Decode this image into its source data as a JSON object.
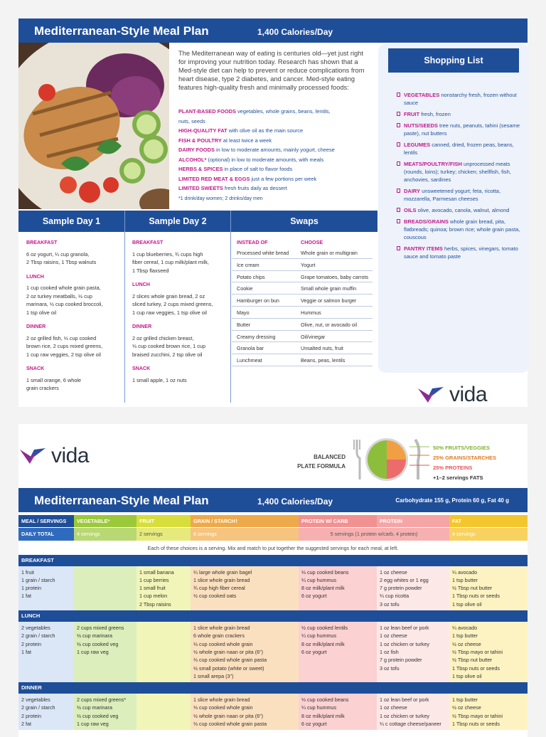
{
  "page1": {
    "title": "Mediterranean-Style Meal Plan",
    "calories": "1,400 Calories/Day",
    "intro": "The Mediterranean way of eating is centuries old—yet just right for improving your nutrition today. Research has shown that a Med-style diet can help to prevent or reduce complications from heart disease, type 2 diabetes, and cancer. Med-style eating features high-quality fresh and minimally processed foods:",
    "foods": [
      {
        "k": "PLANT-BASED FOODS",
        "v": "vegetables, whole grains, beans, lentils,"
      },
      {
        "k": "",
        "v": "nuts, seeds"
      },
      {
        "k": "HIGH-QUALITY FAT",
        "v": "with olive oil as the main source"
      },
      {
        "k": "FISH & POULTRY",
        "v": "at least twice a week"
      },
      {
        "k": "DAIRY FOODS",
        "v": "in low to moderate amounts, mainly yogurt, cheese"
      },
      {
        "k": "ALCOHOL*",
        "v": "(optional) in low to moderate amounts, with meals"
      },
      {
        "k": "HERBS & SPICES",
        "v": "in place of salt to flavor foods"
      },
      {
        "k": "LIMITED RED MEAT & EGGS",
        "v": "just a few portions per week"
      },
      {
        "k": "LIMITED SWEETS",
        "v": "fresh fruits daily as dessert"
      }
    ],
    "footnote": "*1 drink/day women; 2 drinks/day men",
    "sample_day_1": {
      "heading": "Sample Day 1",
      "meals": [
        {
          "h": "BREAKFAST",
          "lines": [
            "6 oz yogurt, ¼ cup granola,",
            "2 Tbsp raisins, 1 Tbsp walnuts"
          ]
        },
        {
          "h": "LUNCH",
          "lines": [
            "1 cup cooked whole grain pasta,",
            "2 oz turkey meatballs, ½ cup",
            "marinara, ½ cup cooked broccoli,",
            "1 tsp olive oil"
          ]
        },
        {
          "h": "DINNER",
          "lines": [
            "2 oz grilled fish, ⅓ cup cooked",
            "brown rice, 2 cups mixed greens,",
            "1 cup raw veggies, 2 tsp olive oil"
          ]
        },
        {
          "h": "SNACK",
          "lines": [
            "1 small orange, 6 whole",
            "grain crackers"
          ]
        }
      ]
    },
    "sample_day_2": {
      "heading": "Sample Day 2",
      "meals": [
        {
          "h": "BREAKFAST",
          "lines": [
            "1 cup blueberries, ¾ cups high",
            "fiber cereal, 1 cup milk/plant milk,",
            "1 Tbsp flaxseed"
          ]
        },
        {
          "h": "LUNCH",
          "lines": [
            "2 slices whole grain bread, 2 oz",
            "sliced turkey, 2 cups mixed greens,",
            "1 cup raw veggies, 1 tsp olive oil"
          ]
        },
        {
          "h": "DINNER",
          "lines": [
            "2 oz grilled chicken breast,",
            "⅓ cup cooked brown rice, 1 cup",
            "braised zucchini, 2 tsp olive oil"
          ]
        },
        {
          "h": "SNACK",
          "lines": [
            "1 small apple, 1 oz nuts"
          ]
        }
      ]
    },
    "swaps": {
      "heading": "Swaps",
      "col_a": "INSTEAD OF",
      "col_b": "CHOOSE",
      "rows": [
        [
          "Processed white bread",
          "Whole grain or multigrain"
        ],
        [
          "Ice cream",
          "Yogurt"
        ],
        [
          "Potato chips",
          "Grape tomatoes, baby carrots"
        ],
        [
          "Cookie",
          "Small whole grain muffin"
        ],
        [
          "Hamburger on bun",
          "Veggie or salmon burger"
        ],
        [
          "Mayo",
          "Hummus"
        ],
        [
          "Butter",
          "Olive, nut, or avocado oil"
        ],
        [
          "Creamy dressing",
          "Oil/vinegar"
        ],
        [
          "Granola bar",
          "Unsalted nuts, fruit"
        ],
        [
          "Lunchmeat",
          "Beans, peas, lentils"
        ]
      ]
    },
    "shopping": {
      "heading": "Shopping List",
      "items": [
        {
          "k": "VEGETABLES",
          "v": "nonstarchy fresh, frozen without sauce"
        },
        {
          "k": "FRUIT",
          "v": "fresh, frozen"
        },
        {
          "k": "NUTS/SEEDS",
          "v": "tree nuts, peanuts, tahini (sesame paste), nut butters"
        },
        {
          "k": "LEGUMES",
          "v": "canned, dried, frozen peas, beans, lentils"
        },
        {
          "k": "MEATS/POULTRY/FISH",
          "v": "unprocessed meats (rounds, loins); turkey; chicken; shellfish, fish, anchovies, sardines"
        },
        {
          "k": "DAIRY",
          "v": "unsweetened yogurt; feta, ricotta, mozzarella, Parmesan cheeses"
        },
        {
          "k": "OILS",
          "v": "olive, avocado, canola, walnut, almond"
        },
        {
          "k": "BREADS/GRAINS",
          "v": "whole grain bread, pita, flatbreads; quinoa; brown rice; whole grain pasta, couscous"
        },
        {
          "k": "PANTRY ITEMS",
          "v": "herbs, spices, vinegars, tomato sauce and tomato paste"
        }
      ]
    },
    "logo": "vida"
  },
  "page2": {
    "logo": "vida",
    "plate_label": [
      "BALANCED",
      "PLATE FORMULA"
    ],
    "plate_legend": [
      {
        "text": "50% FRUITS/VEGGIES",
        "color": "#7fb232"
      },
      {
        "text": "25% GRAINS/STARCHES",
        "color": "#e07b1f"
      },
      {
        "text": "25% PROTEINS",
        "color": "#e8525a"
      },
      {
        "text": "+1–2 servings FATS",
        "color": "#333333"
      }
    ],
    "title": "Mediterranean-Style Meal Plan",
    "calories": "1,400 Calories/Day",
    "macros": "Carbohydrate 155 g, Protein 60 g, Fat 40 g",
    "headers": [
      "MEAL / SERVINGS",
      "VEGETABLE*",
      "FRUIT",
      "GRAIN / STARCH†",
      "PROTEIN W/ CARB",
      "PROTEIN",
      "FAT"
    ],
    "daily_total": {
      "label": "DAILY TOTAL",
      "veg": "4 servings",
      "fruit": "2 servings",
      "grain": "6 servings",
      "protein": "5 servings (1 protein w/carb, 4 protein)",
      "fat": "4 servings"
    },
    "note": "Each of these choices is a serving. Mix and match to put together the suggested servings for each meal, at left.",
    "meals": [
      {
        "name": "BREAKFAST",
        "cols": [
          [
            "1 fruit",
            "1 grain / starch",
            "1 protein",
            "1 fat"
          ],
          [],
          [
            "1 small banana",
            "1 cup berries",
            "1 small fruit",
            "1 cup melon",
            "2 Tbsp raisins"
          ],
          [
            "¼ large whole grain bagel",
            "1 slice whole grain bread",
            "¾ cup high fiber cereal",
            "½ cup cooked oats"
          ],
          [
            "⅓ cup cooked beans",
            "¼ cup hummus",
            "8 oz milk/plant milk",
            "6 oz yogurt"
          ],
          [
            "1 oz cheese",
            "2 egg whites or 1 egg",
            "7 g protein powder",
            "¼ cup ricotta",
            "3 oz tofu"
          ],
          [
            "¼ avocado",
            "1 tsp butter",
            "½ Tbsp nut butter",
            "1 Tbsp nuts or seeds",
            "1 tsp olive oil"
          ]
        ]
      },
      {
        "name": "LUNCH",
        "cols": [
          [
            "2 vegetables",
            "2 grain / starch",
            "2 protein",
            "1 fat"
          ],
          [
            "2 cups mixed greens",
            "½ cup marinara",
            "½ cup cooked veg",
            "1 cup raw veg"
          ],
          [],
          [
            "1 slice whole grain bread",
            "6 whole grain crackers",
            "⅓ cup cooked whole grain",
            "½ whole grain naan or pita (6\")",
            "⅓ cup cooked whole grain pasta",
            "½ small potato (white or sweet)",
            "1 small arepa (3\")"
          ],
          [
            "½ cup cooked lentils",
            "¼ cup hummus",
            "8 oz milk/plant milk",
            "6 oz yogurt"
          ],
          [
            "1 oz lean beef or pork",
            "1 oz cheese",
            "1 oz chicken or turkey",
            "1 oz fish",
            "7 g protein powder",
            "3 oz tofu"
          ],
          [
            "¼ avocado",
            "1 tsp butter",
            "½ oz cheese",
            "½ Tbsp mayo or tahini",
            "½ Tbsp nut butter",
            "1 Tbsp nuts or seeds",
            "1 tsp olive oil"
          ]
        ]
      },
      {
        "name": "DINNER",
        "cols": [
          [
            "2 vegetables",
            "2 grain / starch",
            "2 protein",
            "2 fat"
          ],
          [
            "2 cups mixed greens*",
            "½ cup marinara",
            "½ cup cooked veg",
            "1 cup raw veg"
          ],
          [],
          [
            "1 slice whole grain bread",
            "⅓ cup cooked whole grain",
            "½ whole grain naan or pita (6\")",
            "⅓ cup cooked whole grain pasta"
          ],
          [
            "⅓ cup cooked beans",
            "¼ cup hummus",
            "8 oz milk/plant milk",
            "6 oz yogurt"
          ],
          [
            "1 oz lean beef or pork",
            "1 oz cheese",
            "1 oz chicken or turkey",
            "¼ c cottage cheese/paneer"
          ],
          [
            "1 tsp butter",
            "½ oz cheese",
            "½ Tbsp mayo or tahini",
            "1 Tbsp nuts or seeds"
          ]
        ]
      }
    ]
  }
}
